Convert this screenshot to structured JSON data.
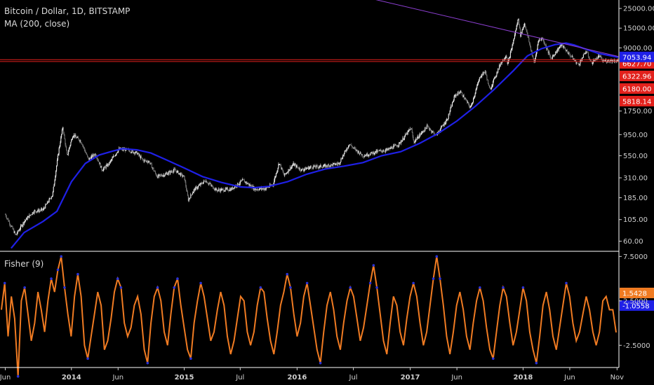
{
  "header": {
    "title": "Bitcoin / Dollar, 1D, BITSTAMP",
    "indicator": "MA (200, close)",
    "sub_indicator": "Fisher (9)"
  },
  "colors": {
    "background": "#000000",
    "candle_up": "#ffffff",
    "candle_down": "#7d7d7d",
    "ma_line": "#1f20e6",
    "trendline": "#8c3fd1",
    "levels": "#e2211c",
    "fisher_line": "#f07b22",
    "fisher_extreme": "#2a33d8",
    "divider": "#ffffff"
  },
  "chart_data": [
    {
      "type": "line",
      "scale": "log",
      "title": "Bitcoin / Dollar, 1D, BITSTAMP",
      "x_range": [
        "2013-06-01",
        "2018-11-05"
      ],
      "xlabel": "",
      "ylabel": "",
      "ylim": [
        47,
        30000
      ],
      "y_ticks": [
        "25000.00",
        "15000.00",
        "9000.00",
        "1750.00",
        "950.00",
        "550.00",
        "310.00",
        "185.00",
        "105.00",
        "60.00"
      ],
      "x_ticks": [
        {
          "label": "Jun",
          "date": "2013-06-01",
          "bold": false
        },
        {
          "label": "2014",
          "date": "2014-01-01",
          "bold": true
        },
        {
          "label": "Jun",
          "date": "2014-06-01",
          "bold": false
        },
        {
          "label": "2015",
          "date": "2015-01-01",
          "bold": true
        },
        {
          "label": "Jul",
          "date": "2015-07-01",
          "bold": false
        },
        {
          "label": "2016",
          "date": "2016-01-01",
          "bold": true
        },
        {
          "label": "Jul",
          "date": "2016-07-01",
          "bold": false
        },
        {
          "label": "2017",
          "date": "2017-01-01",
          "bold": true
        },
        {
          "label": "Jun",
          "date": "2017-06-01",
          "bold": false
        },
        {
          "label": "2018",
          "date": "2018-01-01",
          "bold": true
        },
        {
          "label": "Jun",
          "date": "2018-06-01",
          "bold": false
        },
        {
          "label": "Nov",
          "date": "2018-11-01",
          "bold": false
        }
      ],
      "series": [
        {
          "name": "Bitcoin / Dollar",
          "kind": "price",
          "points": [
            [
              "2013-06-01",
              120
            ],
            [
              "2013-07-05",
              70
            ],
            [
              "2013-08-01",
              100
            ],
            [
              "2013-09-01",
              130
            ],
            [
              "2013-10-01",
              135
            ],
            [
              "2013-11-01",
              200
            ],
            [
              "2013-11-20",
              600
            ],
            [
              "2013-12-04",
              1150
            ],
            [
              "2013-12-18",
              550
            ],
            [
              "2014-01-06",
              950
            ],
            [
              "2014-02-01",
              800
            ],
            [
              "2014-02-25",
              500
            ],
            [
              "2014-03-20",
              580
            ],
            [
              "2014-04-10",
              380
            ],
            [
              "2014-05-01",
              440
            ],
            [
              "2014-06-03",
              650
            ],
            [
              "2014-07-01",
              640
            ],
            [
              "2014-08-01",
              590
            ],
            [
              "2014-08-20",
              490
            ],
            [
              "2014-09-10",
              470
            ],
            [
              "2014-10-05",
              320
            ],
            [
              "2014-11-01",
              340
            ],
            [
              "2014-12-01",
              380
            ],
            [
              "2015-01-01",
              315
            ],
            [
              "2015-01-14",
              175
            ],
            [
              "2015-02-01",
              225
            ],
            [
              "2015-03-10",
              290
            ],
            [
              "2015-04-15",
              225
            ],
            [
              "2015-06-01",
              230
            ],
            [
              "2015-07-10",
              290
            ],
            [
              "2015-08-20",
              230
            ],
            [
              "2015-09-20",
              235
            ],
            [
              "2015-10-15",
              260
            ],
            [
              "2015-11-04",
              460
            ],
            [
              "2015-11-20",
              330
            ],
            [
              "2015-12-20",
              440
            ],
            [
              "2016-01-15",
              380
            ],
            [
              "2016-02-15",
              410
            ],
            [
              "2016-04-01",
              420
            ],
            [
              "2016-05-15",
              450
            ],
            [
              "2016-06-18",
              750
            ],
            [
              "2016-07-01",
              670
            ],
            [
              "2016-08-02",
              550
            ],
            [
              "2016-09-15",
              610
            ],
            [
              "2016-10-20",
              640
            ],
            [
              "2016-11-25",
              740
            ],
            [
              "2017-01-04",
              1130
            ],
            [
              "2017-01-12",
              780
            ],
            [
              "2017-02-25",
              1180
            ],
            [
              "2017-03-25",
              930
            ],
            [
              "2017-05-01",
              1420
            ],
            [
              "2017-05-25",
              2600
            ],
            [
              "2017-06-12",
              2900
            ],
            [
              "2017-07-15",
              1900
            ],
            [
              "2017-08-15",
              4300
            ],
            [
              "2017-09-01",
              4900
            ],
            [
              "2017-09-15",
              3000
            ],
            [
              "2017-10-20",
              6000
            ],
            [
              "2017-11-08",
              7500
            ],
            [
              "2017-11-12",
              5800
            ],
            [
              "2017-11-30",
              10500
            ],
            [
              "2017-12-17",
              19700
            ],
            [
              "2017-12-23",
              12500
            ],
            [
              "2018-01-06",
              17000
            ],
            [
              "2018-02-06",
              6000
            ],
            [
              "2018-02-20",
              11000
            ],
            [
              "2018-03-05",
              11500
            ],
            [
              "2018-04-01",
              6800
            ],
            [
              "2018-05-05",
              9800
            ],
            [
              "2018-06-01",
              7500
            ],
            [
              "2018-06-29",
              5800
            ],
            [
              "2018-07-24",
              8300
            ],
            [
              "2018-08-10",
              6100
            ],
            [
              "2018-09-05",
              7300
            ],
            [
              "2018-09-15",
              6400
            ],
            [
              "2018-10-10",
              6500
            ],
            [
              "2018-11-05",
              6420
            ]
          ]
        },
        {
          "name": "MA (200, close)",
          "kind": "ma",
          "points": [
            [
              "2013-06-20",
              50
            ],
            [
              "2013-08-01",
              75
            ],
            [
              "2013-10-01",
              100
            ],
            [
              "2013-11-15",
              130
            ],
            [
              "2014-01-01",
              280
            ],
            [
              "2014-02-15",
              450
            ],
            [
              "2014-04-01",
              560
            ],
            [
              "2014-05-15",
              620
            ],
            [
              "2014-06-15",
              660
            ],
            [
              "2014-08-01",
              640
            ],
            [
              "2014-09-15",
              590
            ],
            [
              "2014-11-01",
              500
            ],
            [
              "2015-01-01",
              400
            ],
            [
              "2015-03-01",
              320
            ],
            [
              "2015-05-01",
              275
            ],
            [
              "2015-07-01",
              245
            ],
            [
              "2015-08-15",
              240
            ],
            [
              "2015-10-01",
              248
            ],
            [
              "2015-12-01",
              280
            ],
            [
              "2016-02-01",
              340
            ],
            [
              "2016-04-01",
              390
            ],
            [
              "2016-06-01",
              420
            ],
            [
              "2016-08-01",
              460
            ],
            [
              "2016-10-01",
              550
            ],
            [
              "2016-12-01",
              610
            ],
            [
              "2017-02-01",
              760
            ],
            [
              "2017-04-01",
              980
            ],
            [
              "2017-06-01",
              1350
            ],
            [
              "2017-08-01",
              2000
            ],
            [
              "2017-10-01",
              3100
            ],
            [
              "2017-12-01",
              5000
            ],
            [
              "2018-01-15",
              7300
            ],
            [
              "2018-03-01",
              8800
            ],
            [
              "2018-04-15",
              9800
            ],
            [
              "2018-05-20",
              10200
            ],
            [
              "2018-06-15",
              9700
            ],
            [
              "2018-07-15",
              8900
            ],
            [
              "2018-09-01",
              7800
            ],
            [
              "2018-11-05",
              7053.94
            ]
          ]
        },
        {
          "name": "trendline",
          "kind": "trend",
          "points": [
            [
              "2016-09-01",
              32000
            ],
            [
              "2018-11-05",
              7200
            ]
          ]
        }
      ],
      "price_levels": [
        {
          "label": "6627.70",
          "value": 6627.7
        },
        {
          "label": "6322.96",
          "value": 6322.96
        },
        {
          "label": "6180.00",
          "value": 6180.0
        },
        {
          "label": "5818.14",
          "value": 5818.14
        }
      ],
      "value_tags": [
        {
          "label": "7053.94",
          "value": 7053.94,
          "color": "#1f20e6"
        }
      ]
    },
    {
      "type": "line",
      "title": "Fisher (9)",
      "ylim": [
        -5,
        8
      ],
      "y_ticks": [
        "7.5000",
        "2.5000",
        "-2.5000"
      ],
      "value_tags": [
        {
          "label": "1.5428",
          "value": 1.5428,
          "color": "#f07b22"
        },
        {
          "label": "-1.0558",
          "value": -1.0558,
          "color": "#1f20e6"
        }
      ],
      "series": [
        {
          "name": "Fisher (9)",
          "y": [
            1.5,
            4.5,
            -1.5,
            3,
            0.5,
            -6,
            2.5,
            4,
            1,
            -2,
            0,
            3.5,
            1.5,
            -1,
            2.5,
            5,
            3.5,
            6,
            7.5,
            4,
            1,
            -1.5,
            3,
            5.5,
            3,
            -2.5,
            -4,
            -1.5,
            1,
            3.5,
            2,
            -3,
            -2,
            0.5,
            3.5,
            5,
            4,
            0,
            -1.5,
            -0.5,
            2,
            3,
            1,
            -3,
            -4.5,
            0,
            3,
            4,
            2.5,
            -1,
            -2.5,
            1,
            4,
            5,
            2,
            -0.5,
            -3,
            -4,
            0,
            2.5,
            4.5,
            3,
            0.5,
            -2,
            -1,
            1.5,
            3.5,
            2,
            -1.5,
            -3.5,
            -2,
            0.5,
            3,
            2.5,
            -1,
            -2.5,
            -1,
            2,
            4,
            3.5,
            0.5,
            -2,
            -3.5,
            -1,
            2,
            3.5,
            5.5,
            4,
            1,
            -1.5,
            0,
            3,
            4.5,
            2,
            -0.5,
            -3,
            -4.5,
            -1,
            2,
            3.5,
            1.5,
            -1.5,
            -3,
            0,
            2.5,
            4,
            3,
            0.5,
            -2,
            -0.5,
            2,
            4.5,
            6.5,
            4,
            1,
            -2,
            -3.5,
            0,
            3,
            2,
            -1,
            -2.5,
            0.5,
            3,
            4.5,
            3,
            0,
            -2.5,
            -1,
            2,
            5,
            7.5,
            5,
            2,
            -1.5,
            -3.5,
            -1,
            2,
            3.5,
            1.5,
            -1.5,
            -3,
            0,
            2.5,
            4,
            2.5,
            -0.5,
            -3,
            -4,
            -1,
            2,
            4,
            3,
            0,
            -2.5,
            -1,
            1.5,
            4,
            2.5,
            -1,
            -3,
            -4.5,
            -1.5,
            2,
            3.5,
            1.5,
            -1.5,
            -3,
            -0.5,
            2,
            4.5,
            3,
            0,
            -2,
            -1,
            1,
            3,
            1.5,
            -1,
            -2.5,
            -1,
            2.5,
            3,
            1.5,
            1.5,
            -1.05
          ]
        }
      ]
    }
  ]
}
